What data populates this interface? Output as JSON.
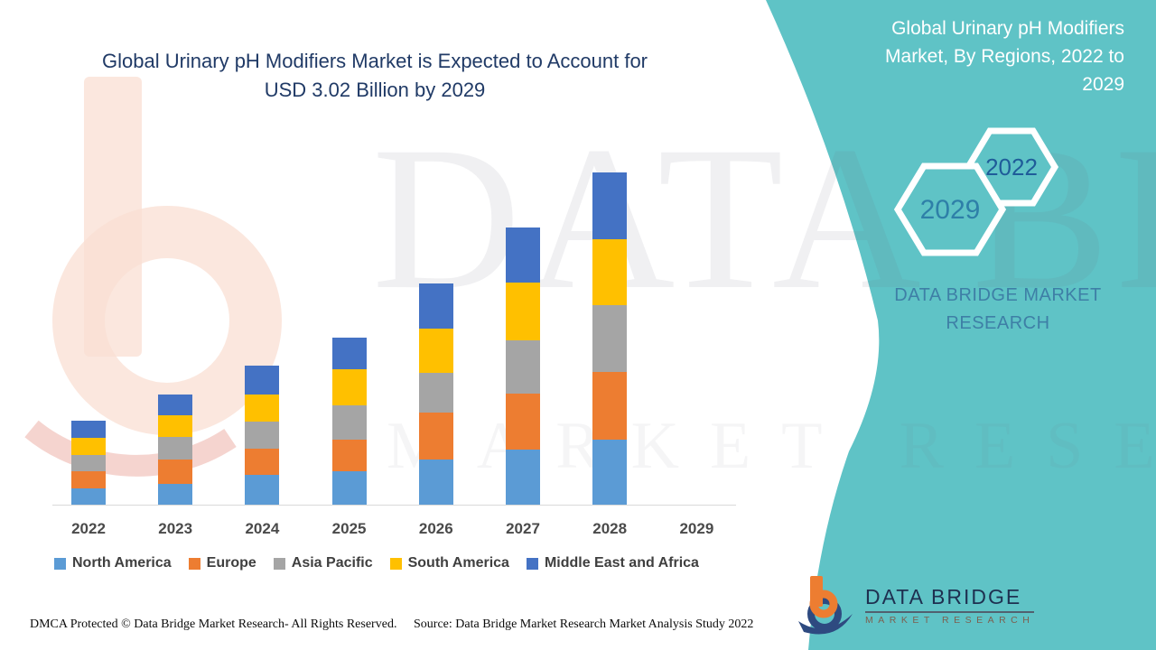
{
  "main_title": {
    "line1": "Global Urinary pH Modifiers Market is Expected to Account for",
    "line2": "USD 3.02 Billion by 2029"
  },
  "chart_data": {
    "type": "bar",
    "stacked": true,
    "title": "Global Urinary pH Modifiers Market is Expected to Account for USD 3.02 Billion by 2029",
    "xlabel": "",
    "ylabel": "",
    "units_note": "USD Billion, estimated from bar heights; chart displays no value axis or gridlines",
    "legend_position": "bottom",
    "grid": false,
    "categories": [
      "2022",
      "2023",
      "2024",
      "2025",
      "2026",
      "2027",
      "2028",
      "2029"
    ],
    "series": [
      {
        "name": "North America",
        "color": "#5B9BD5",
        "values": [
          0.13,
          0.16,
          0.23,
          0.26,
          0.35,
          0.43,
          0.51,
          null
        ]
      },
      {
        "name": "Europe",
        "color": "#ED7D31",
        "values": [
          0.13,
          0.19,
          0.21,
          0.25,
          0.37,
          0.44,
          0.53,
          null
        ]
      },
      {
        "name": "Asia Pacific",
        "color": "#A5A5A5",
        "values": [
          0.13,
          0.18,
          0.21,
          0.27,
          0.31,
          0.42,
          0.52,
          null
        ]
      },
      {
        "name": "South America",
        "color": "#FFC000",
        "values": [
          0.13,
          0.17,
          0.21,
          0.28,
          0.35,
          0.45,
          0.52,
          null
        ]
      },
      {
        "name": "Middle East and Africa",
        "color": "#4472C4",
        "values": [
          0.14,
          0.16,
          0.23,
          0.25,
          0.35,
          0.43,
          0.52,
          null
        ]
      }
    ],
    "totals_estimated": [
      0.66,
      0.86,
      1.09,
      1.31,
      1.73,
      2.17,
      2.6,
      null
    ]
  },
  "side_panel": {
    "title": "Global Urinary pH Modifiers Market, By Regions, 2022 to 2029",
    "hex_back_label": "2022",
    "hex_front_label": "2029",
    "brand_text": "DATA BRIDGE MARKET RESEARCH",
    "background_color": "#5FC3C6"
  },
  "watermark": {
    "line1": "DATA BRIDGE",
    "line2": "MARKET RESEARCH"
  },
  "logo": {
    "title": "DATA BRIDGE",
    "subtitle": "MARKET RESEARCH"
  },
  "footer": {
    "dmca": "DMCA Protected © Data Bridge Market Research- All Rights Reserved.",
    "source": "Source: Data Bridge Market Research Market Analysis Study 2022"
  },
  "colors": {
    "title_text": "#203A66",
    "panel_teal": "#5FC3C6",
    "axis_line": "#D9D9D9",
    "tick_label": "#4A4A4A",
    "legend_text": "#3F3F3F",
    "panel_brand_text": "#3E7FA6",
    "hex_2022_text": "#1F5C99",
    "hex_2029_text": "#2E7FA8",
    "logo_orange": "#ED7D31",
    "logo_navy": "#2E4A80"
  }
}
